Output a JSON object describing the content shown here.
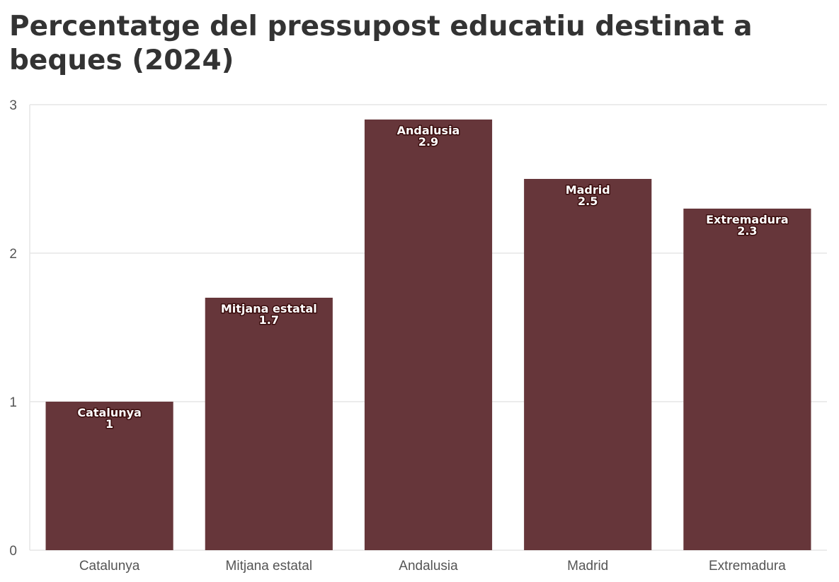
{
  "title": "Percentatge del pressupost educatiu destinat a beques (2024)",
  "chart_data": {
    "type": "bar",
    "title": "Percentatge del pressupost educatiu destinat a beques (2024)",
    "xlabel": "",
    "ylabel": "",
    "categories": [
      "Catalunya",
      "Mitjana estatal",
      "Andalusia",
      "Madrid",
      "Extremadura"
    ],
    "values": [
      1,
      1.7,
      2.9,
      2.5,
      2.3
    ],
    "value_labels": [
      "1",
      "1.7",
      "2.9",
      "2.5",
      "2.3"
    ],
    "yticks": [
      0,
      1,
      2,
      3
    ],
    "ylim": [
      0,
      3
    ],
    "grid": true,
    "legend": "none",
    "bar_color": "#66363A",
    "grid_color": "#e6e6e6"
  }
}
